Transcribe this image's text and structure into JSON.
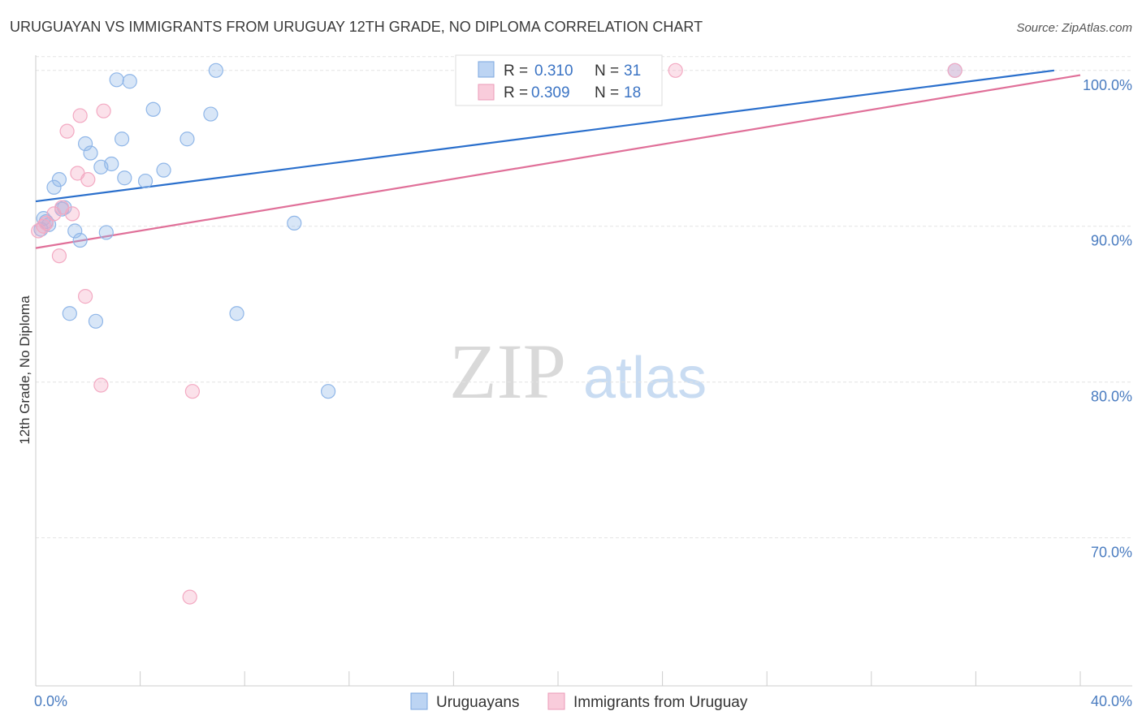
{
  "chart_data": {
    "type": "scatter",
    "title": "URUGUAYAN VS IMMIGRANTS FROM URUGUAY 12TH GRADE, NO DIPLOMA CORRELATION CHART",
    "source": "Source: ZipAtlas.com",
    "xlabel": "",
    "ylabel": "12th Grade, No Diploma",
    "xlim": [
      0,
      40
    ],
    "ylim": [
      60.5,
      101.5
    ],
    "x_tick_labels": [
      "0.0%",
      "40.0%"
    ],
    "y_ticks": [
      100,
      90,
      80,
      70
    ],
    "y_tick_labels": [
      "100.0%",
      "90.0%",
      "80.0%",
      "70.0%"
    ],
    "grid": true,
    "watermark": {
      "zip": "ZIP",
      "atlas": "atlas"
    },
    "legend": {
      "r_label": "R =",
      "n_label": "N =",
      "entries": [
        {
          "r": "0.310",
          "n": "31"
        },
        {
          "r": "0.309",
          "n": "18"
        }
      ]
    },
    "series": [
      {
        "name": "Uruguayans",
        "color": "#8fb6e8",
        "line_color": "#2a6fcc",
        "trend": [
          [
            0,
            91.6
          ],
          [
            39.0,
            100.0
          ]
        ],
        "points": [
          [
            0.3,
            90.5
          ],
          [
            0.5,
            90.1
          ],
          [
            0.7,
            92.5
          ],
          [
            0.9,
            93.0
          ],
          [
            1.1,
            91.2
          ],
          [
            1.3,
            84.4
          ],
          [
            1.5,
            89.7
          ],
          [
            1.7,
            89.1
          ],
          [
            1.9,
            95.3
          ],
          [
            2.1,
            94.7
          ],
          [
            2.3,
            83.9
          ],
          [
            2.5,
            93.8
          ],
          [
            2.7,
            89.6
          ],
          [
            2.9,
            94.0
          ],
          [
            3.1,
            99.4
          ],
          [
            3.3,
            95.6
          ],
          [
            3.4,
            93.1
          ],
          [
            3.6,
            99.3
          ],
          [
            4.2,
            92.9
          ],
          [
            4.5,
            97.5
          ],
          [
            4.9,
            93.6
          ],
          [
            5.8,
            95.6
          ],
          [
            6.7,
            97.2
          ],
          [
            6.9,
            100.0
          ],
          [
            7.7,
            84.4
          ],
          [
            9.9,
            90.2
          ],
          [
            11.2,
            79.4
          ],
          [
            35.2,
            100.0
          ],
          [
            0.2,
            89.8
          ],
          [
            0.4,
            90.3
          ],
          [
            1.0,
            91.1
          ]
        ]
      },
      {
        "name": "Immigrants from Uruguay",
        "color": "#f3a9c2",
        "line_color": "#e07099",
        "trend": [
          [
            0,
            88.6
          ],
          [
            40.0,
            99.7
          ]
        ],
        "points": [
          [
            0.1,
            89.7
          ],
          [
            0.4,
            90.2
          ],
          [
            0.7,
            90.8
          ],
          [
            0.9,
            88.1
          ],
          [
            1.0,
            91.2
          ],
          [
            1.2,
            96.1
          ],
          [
            1.4,
            90.8
          ],
          [
            1.6,
            93.4
          ],
          [
            1.7,
            97.1
          ],
          [
            1.9,
            85.5
          ],
          [
            2.0,
            93.0
          ],
          [
            2.5,
            79.8
          ],
          [
            2.6,
            97.4
          ],
          [
            6.0,
            79.4
          ],
          [
            5.9,
            66.2
          ],
          [
            24.5,
            100.0
          ],
          [
            35.2,
            100.0
          ],
          [
            0.3,
            90.0
          ]
        ]
      }
    ]
  }
}
